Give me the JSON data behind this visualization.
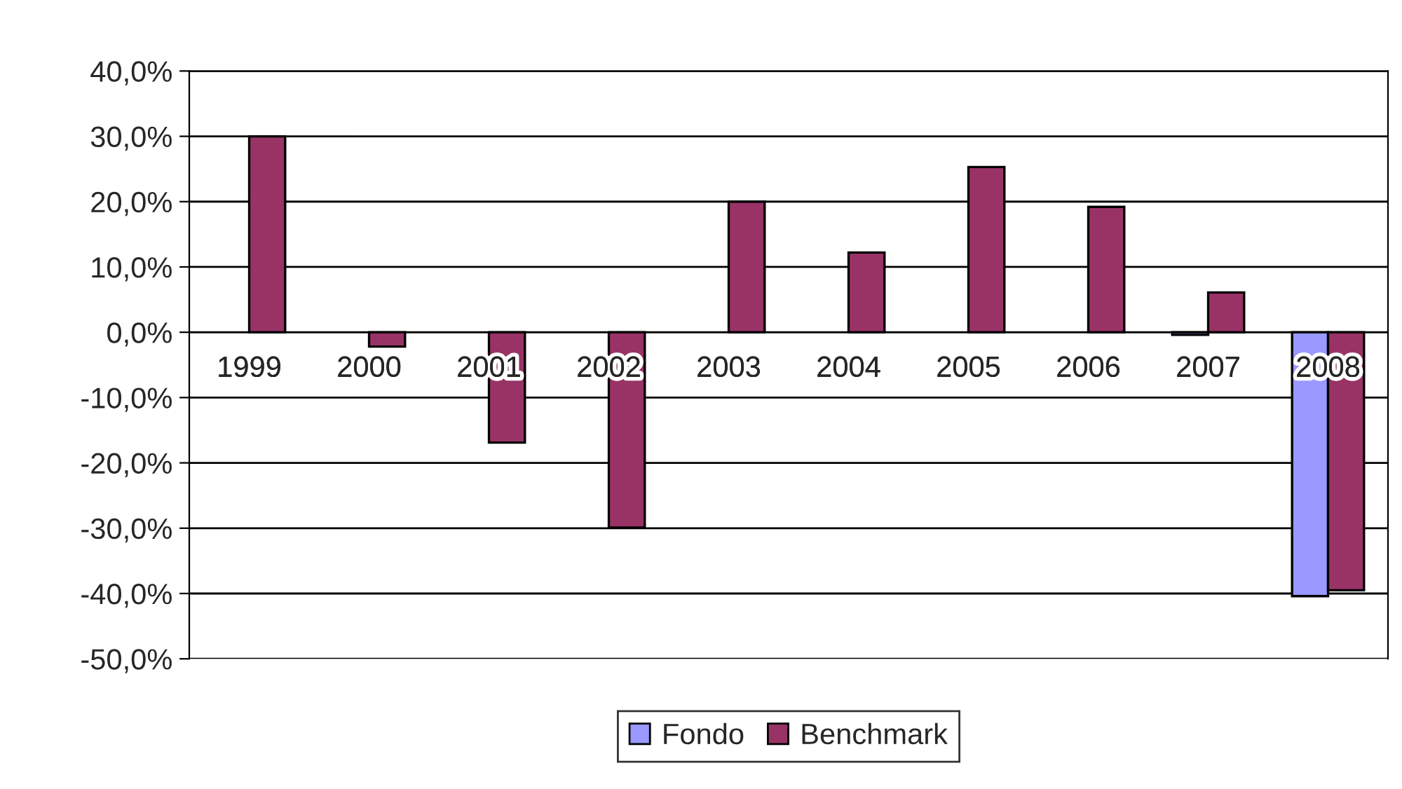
{
  "chart_data": {
    "type": "bar",
    "categories": [
      "1999",
      "2000",
      "2001",
      "2002",
      "2003",
      "2004",
      "2005",
      "2006",
      "2007",
      "2008"
    ],
    "series": [
      {
        "name": "Fondo",
        "color": "#9999ff",
        "values": [
          null,
          null,
          null,
          null,
          null,
          null,
          null,
          null,
          -0.4,
          -40.4
        ]
      },
      {
        "name": "Benchmark",
        "color": "#993366",
        "values": [
          30.0,
          -2.2,
          -16.9,
          -29.9,
          20.0,
          12.2,
          25.3,
          19.2,
          6.1,
          -39.5
        ]
      }
    ],
    "ylim": [
      -50,
      40
    ],
    "yticks": [
      {
        "value": -50,
        "label": "-50,0%"
      },
      {
        "value": -40,
        "label": "-40,0%"
      },
      {
        "value": -30,
        "label": "-30,0%"
      },
      {
        "value": -20,
        "label": "-20,0%"
      },
      {
        "value": -10,
        "label": "-10,0%"
      },
      {
        "value": 0,
        "label": "0,0%"
      },
      {
        "value": 10,
        "label": "10,0%"
      },
      {
        "value": 20,
        "label": "20,0%"
      },
      {
        "value": 30,
        "label": "30,0%"
      },
      {
        "value": 40,
        "label": "40,0%"
      }
    ],
    "grid": "y",
    "legend": "bottom"
  }
}
